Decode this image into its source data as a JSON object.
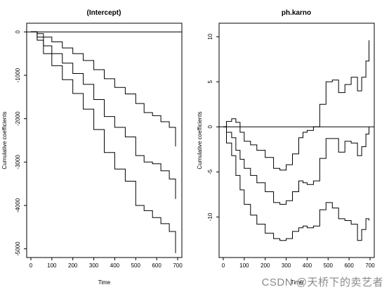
{
  "watermark": "CSDN @天桥下的卖艺者",
  "chart_data": [
    {
      "type": "line",
      "title": "(Intercept)",
      "xlabel": "Time",
      "ylabel": "Cumulative coefficients",
      "xlim": [
        -20,
        720
      ],
      "ylim": [
        -5200,
        200
      ],
      "xticks": [
        0,
        100,
        200,
        300,
        400,
        500,
        600,
        700
      ],
      "yticks": [
        0,
        -1000,
        -2000,
        -3000,
        -4000,
        -5000
      ],
      "hline": 0,
      "grid": false,
      "series": [
        {
          "role": "upper",
          "points": [
            [
              0,
              0
            ],
            [
              30,
              -40
            ],
            [
              60,
              -120
            ],
            [
              100,
              -230
            ],
            [
              150,
              -370
            ],
            [
              200,
              -500
            ],
            [
              250,
              -660
            ],
            [
              300,
              -870
            ],
            [
              350,
              -1080
            ],
            [
              400,
              -1280
            ],
            [
              450,
              -1430
            ],
            [
              500,
              -1650
            ],
            [
              540,
              -1860
            ],
            [
              580,
              -1930
            ],
            [
              620,
              -2070
            ],
            [
              660,
              -2200
            ],
            [
              690,
              -2640
            ]
          ]
        },
        {
          "role": "estimate",
          "points": [
            [
              0,
              0
            ],
            [
              30,
              -120
            ],
            [
              60,
              -320
            ],
            [
              100,
              -500
            ],
            [
              150,
              -720
            ],
            [
              200,
              -960
            ],
            [
              250,
              -1210
            ],
            [
              300,
              -1560
            ],
            [
              350,
              -1950
            ],
            [
              400,
              -2200
            ],
            [
              450,
              -2420
            ],
            [
              500,
              -2850
            ],
            [
              540,
              -3000
            ],
            [
              580,
              -3040
            ],
            [
              620,
              -3200
            ],
            [
              660,
              -3390
            ],
            [
              690,
              -3850
            ]
          ]
        },
        {
          "role": "lower",
          "points": [
            [
              0,
              0
            ],
            [
              30,
              -190
            ],
            [
              60,
              -500
            ],
            [
              100,
              -780
            ],
            [
              150,
              -1100
            ],
            [
              200,
              -1420
            ],
            [
              250,
              -1780
            ],
            [
              300,
              -2250
            ],
            [
              350,
              -2780
            ],
            [
              400,
              -3160
            ],
            [
              450,
              -3440
            ],
            [
              500,
              -4000
            ],
            [
              540,
              -4120
            ],
            [
              580,
              -4280
            ],
            [
              620,
              -4420
            ],
            [
              660,
              -4600
            ],
            [
              690,
              -5100
            ]
          ]
        }
      ]
    },
    {
      "type": "line",
      "title": "ph.karno",
      "xlabel": "Time",
      "ylabel": "Cumulative coefficients",
      "xlim": [
        -20,
        720
      ],
      "ylim": [
        -14.5,
        11.5
      ],
      "xticks": [
        0,
        100,
        200,
        300,
        400,
        500,
        600,
        700
      ],
      "yticks": [
        10,
        5,
        0,
        -5,
        -10
      ],
      "hline": 0,
      "grid": false,
      "series": [
        {
          "role": "upper",
          "points": [
            [
              0,
              0
            ],
            [
              15,
              0.6
            ],
            [
              40,
              0.9
            ],
            [
              60,
              0.5
            ],
            [
              80,
              -0.6
            ],
            [
              100,
              -1.6
            ],
            [
              130,
              -2.0
            ],
            [
              160,
              -2.6
            ],
            [
              200,
              -3.4
            ],
            [
              240,
              -4.6
            ],
            [
              270,
              -4.8
            ],
            [
              300,
              -4.2
            ],
            [
              330,
              -3.0
            ],
            [
              360,
              -1.2
            ],
            [
              380,
              -0.6
            ],
            [
              400,
              -0.4
            ],
            [
              430,
              0.0
            ],
            [
              460,
              2.5
            ],
            [
              490,
              5.0
            ],
            [
              520,
              5.2
            ],
            [
              550,
              3.8
            ],
            [
              580,
              4.7
            ],
            [
              610,
              5.5
            ],
            [
              640,
              4.0
            ],
            [
              660,
              5.5
            ],
            [
              680,
              7.3
            ],
            [
              695,
              9.6
            ]
          ]
        },
        {
          "role": "estimate",
          "points": [
            [
              0,
              0
            ],
            [
              15,
              -0.6
            ],
            [
              40,
              -1.2
            ],
            [
              60,
              -2.6
            ],
            [
              80,
              -3.6
            ],
            [
              100,
              -4.6
            ],
            [
              130,
              -5.4
            ],
            [
              160,
              -6.2
            ],
            [
              200,
              -7.2
            ],
            [
              240,
              -8.4
            ],
            [
              270,
              -8.6
            ],
            [
              300,
              -8.2
            ],
            [
              330,
              -7.2
            ],
            [
              360,
              -6.0
            ],
            [
              380,
              -6.2
            ],
            [
              400,
              -6.4
            ],
            [
              430,
              -6.0
            ],
            [
              460,
              -3.5
            ],
            [
              490,
              -1.3
            ],
            [
              520,
              -1.3
            ],
            [
              550,
              -2.8
            ],
            [
              580,
              -1.6
            ],
            [
              610,
              -1.8
            ],
            [
              640,
              -3.2
            ],
            [
              660,
              -2.2
            ],
            [
              680,
              -0.8
            ],
            [
              695,
              0.0
            ]
          ]
        },
        {
          "role": "lower",
          "points": [
            [
              0,
              0
            ],
            [
              15,
              -1.8
            ],
            [
              40,
              -3.2
            ],
            [
              60,
              -5.4
            ],
            [
              80,
              -7.0
            ],
            [
              100,
              -8.6
            ],
            [
              130,
              -9.8
            ],
            [
              160,
              -10.8
            ],
            [
              200,
              -11.8
            ],
            [
              240,
              -12.4
            ],
            [
              270,
              -12.6
            ],
            [
              300,
              -12.4
            ],
            [
              330,
              -11.6
            ],
            [
              360,
              -11.2
            ],
            [
              380,
              -11.0
            ],
            [
              400,
              -11.2
            ],
            [
              430,
              -11.0
            ],
            [
              460,
              -9.2
            ],
            [
              490,
              -8.4
            ],
            [
              520,
              -9.0
            ],
            [
              550,
              -10.2
            ],
            [
              580,
              -10.4
            ],
            [
              610,
              -10.8
            ],
            [
              640,
              -12.6
            ],
            [
              660,
              -11.4
            ],
            [
              680,
              -10.2
            ],
            [
              695,
              -10.4
            ]
          ]
        }
      ]
    }
  ]
}
